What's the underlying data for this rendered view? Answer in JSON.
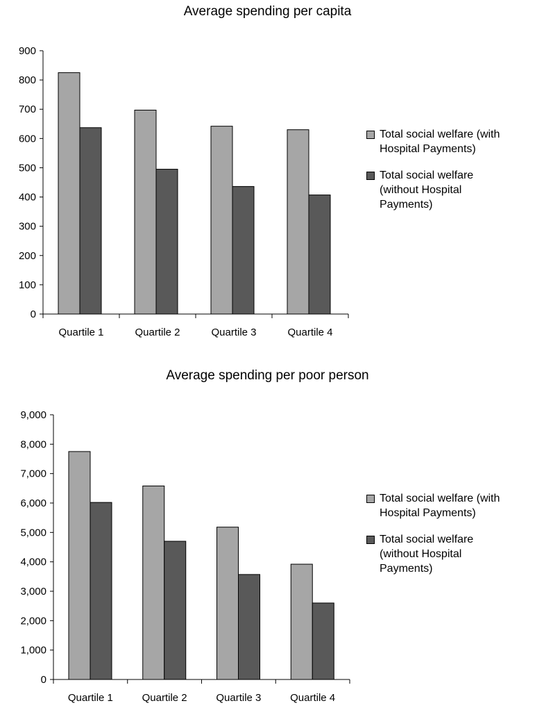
{
  "colors": {
    "series_with": "#a6a6a6",
    "series_without": "#595959",
    "axis": "#000000"
  },
  "chart_data": [
    {
      "type": "bar",
      "title": "Average spending per capita",
      "xlabel": "",
      "ylabel": "",
      "categories": [
        "Quartile 1",
        "Quartile 2",
        "Quartile 3",
        "Quartile 4"
      ],
      "ylim": [
        0,
        900
      ],
      "yticks": [
        "0",
        "100",
        "200",
        "300",
        "400",
        "500",
        "600",
        "700",
        "800",
        "900"
      ],
      "ytick_values": [
        0,
        100,
        200,
        300,
        400,
        500,
        600,
        700,
        800,
        900
      ],
      "grid": false,
      "legend_position": "right",
      "series": [
        {
          "name": "Total social welfare (with Hospital Payments)",
          "legend_lines": [
            "Total social welfare (with",
            "Hospital Payments)"
          ],
          "values": [
            825,
            697,
            642,
            630
          ]
        },
        {
          "name": "Total social welfare (without Hospital Payments)",
          "legend_lines": [
            "Total social welfare",
            "(without Hospital",
            "Payments)"
          ],
          "values": [
            637,
            495,
            436,
            407
          ]
        }
      ]
    },
    {
      "type": "bar",
      "title": "Average spending per poor person",
      "xlabel": "",
      "ylabel": "",
      "categories": [
        "Quartile 1",
        "Quartile 2",
        "Quartile 3",
        "Quartile 4"
      ],
      "ylim": [
        0,
        9000
      ],
      "yticks": [
        "0",
        "1,000",
        "2,000",
        "3,000",
        "4,000",
        "5,000",
        "6,000",
        "7,000",
        "8,000",
        "9,000"
      ],
      "ytick_values": [
        0,
        1000,
        2000,
        3000,
        4000,
        5000,
        6000,
        7000,
        8000,
        9000
      ],
      "grid": false,
      "legend_position": "right",
      "series": [
        {
          "name": "Total social welfare (with Hospital Payments)",
          "legend_lines": [
            "Total social welfare (with",
            "Hospital Payments)"
          ],
          "values": [
            7750,
            6580,
            5180,
            3920
          ]
        },
        {
          "name": "Total social welfare (without Hospital Payments)",
          "legend_lines": [
            "Total social welfare",
            "(without Hospital",
            "Payments)"
          ],
          "values": [
            6020,
            4700,
            3570,
            2600
          ]
        }
      ]
    }
  ]
}
